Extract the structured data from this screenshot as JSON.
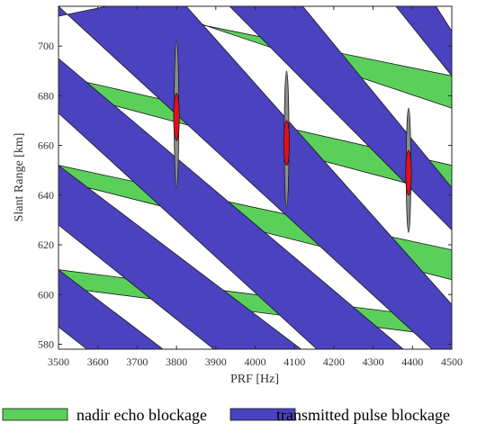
{
  "chart_data": {
    "type": "area",
    "title": "",
    "xlabel": "PRF [Hz]",
    "ylabel": "Slant Range [km]",
    "xlim": [
      3500,
      4500
    ],
    "ylim": [
      578,
      716
    ],
    "xticks": [
      3500,
      3600,
      3700,
      3800,
      3900,
      4000,
      4100,
      4200,
      4300,
      4400,
      4500
    ],
    "yticks": [
      580,
      600,
      620,
      640,
      660,
      680,
      700
    ],
    "legend_position": "bottom",
    "legend": [
      {
        "label": "nadir echo blockage",
        "color": "#5ad05a"
      },
      {
        "label": "transmitted pulse blockage",
        "color": "#4a42bf"
      }
    ],
    "series": [
      {
        "name": "nadir echo blockage",
        "color": "#5ad05a",
        "bands": [
          [
            [
              3633,
              716
            ],
            [
              3728,
              716
            ],
            [
              4500,
              675
            ],
            [
              4500,
              688
            ]
          ],
          [
            [
              3500,
              688
            ],
            [
              3500,
              682
            ],
            [
              4500,
              640
            ],
            [
              4500,
              652
            ]
          ],
          [
            [
              3500,
              652
            ],
            [
              3500,
              646
            ],
            [
              4500,
              606
            ],
            [
              4500,
              618
            ]
          ],
          [
            [
              3500,
              610
            ],
            [
              3500,
              603
            ],
            [
              4500,
              583
            ],
            [
              4500,
              590
            ]
          ]
        ]
      },
      {
        "name": "transmitted pulse blockage",
        "color": "#4a42bf",
        "bands": [
          [
            [
              4358,
              716
            ],
            [
              4460,
              716
            ],
            [
              4500,
              706
            ],
            [
              4500,
              688
            ]
          ],
          [
            [
              3935,
              716
            ],
            [
              4121,
              716
            ],
            [
              4500,
              643
            ],
            [
              4500,
              626
            ]
          ],
          [
            [
              3500,
              716
            ],
            [
              3500,
              712
            ],
            [
              3623,
              716
            ],
            [
              3825,
              716
            ],
            [
              4500,
              596
            ],
            [
              4500,
              578
            ],
            [
              4450,
              578
            ]
          ],
          [
            [
              3500,
              695
            ],
            [
              3500,
              673
            ],
            [
              4157,
              578
            ],
            [
              4377,
              578
            ]
          ],
          [
            [
              3500,
              652
            ],
            [
              3500,
              628
            ],
            [
              3895,
              578
            ],
            [
              4117,
              578
            ]
          ],
          [
            [
              3500,
              610
            ],
            [
              3500,
              587
            ],
            [
              3572,
              578
            ],
            [
              3766,
              578
            ]
          ]
        ]
      }
    ],
    "annotations": [
      {
        "type": "gray-ellipse",
        "x": 3800,
        "y_min": 643,
        "y_max": 702
      },
      {
        "type": "red-ellipse",
        "x": 3800,
        "y_min": 662,
        "y_max": 681
      },
      {
        "type": "gray-ellipse",
        "x": 4080,
        "y_min": 635,
        "y_max": 690
      },
      {
        "type": "red-ellipse",
        "x": 4080,
        "y_min": 652,
        "y_max": 670
      },
      {
        "type": "gray-ellipse",
        "x": 4390,
        "y_min": 625,
        "y_max": 675
      },
      {
        "type": "red-ellipse",
        "x": 4390,
        "y_min": 640,
        "y_max": 658
      }
    ]
  }
}
